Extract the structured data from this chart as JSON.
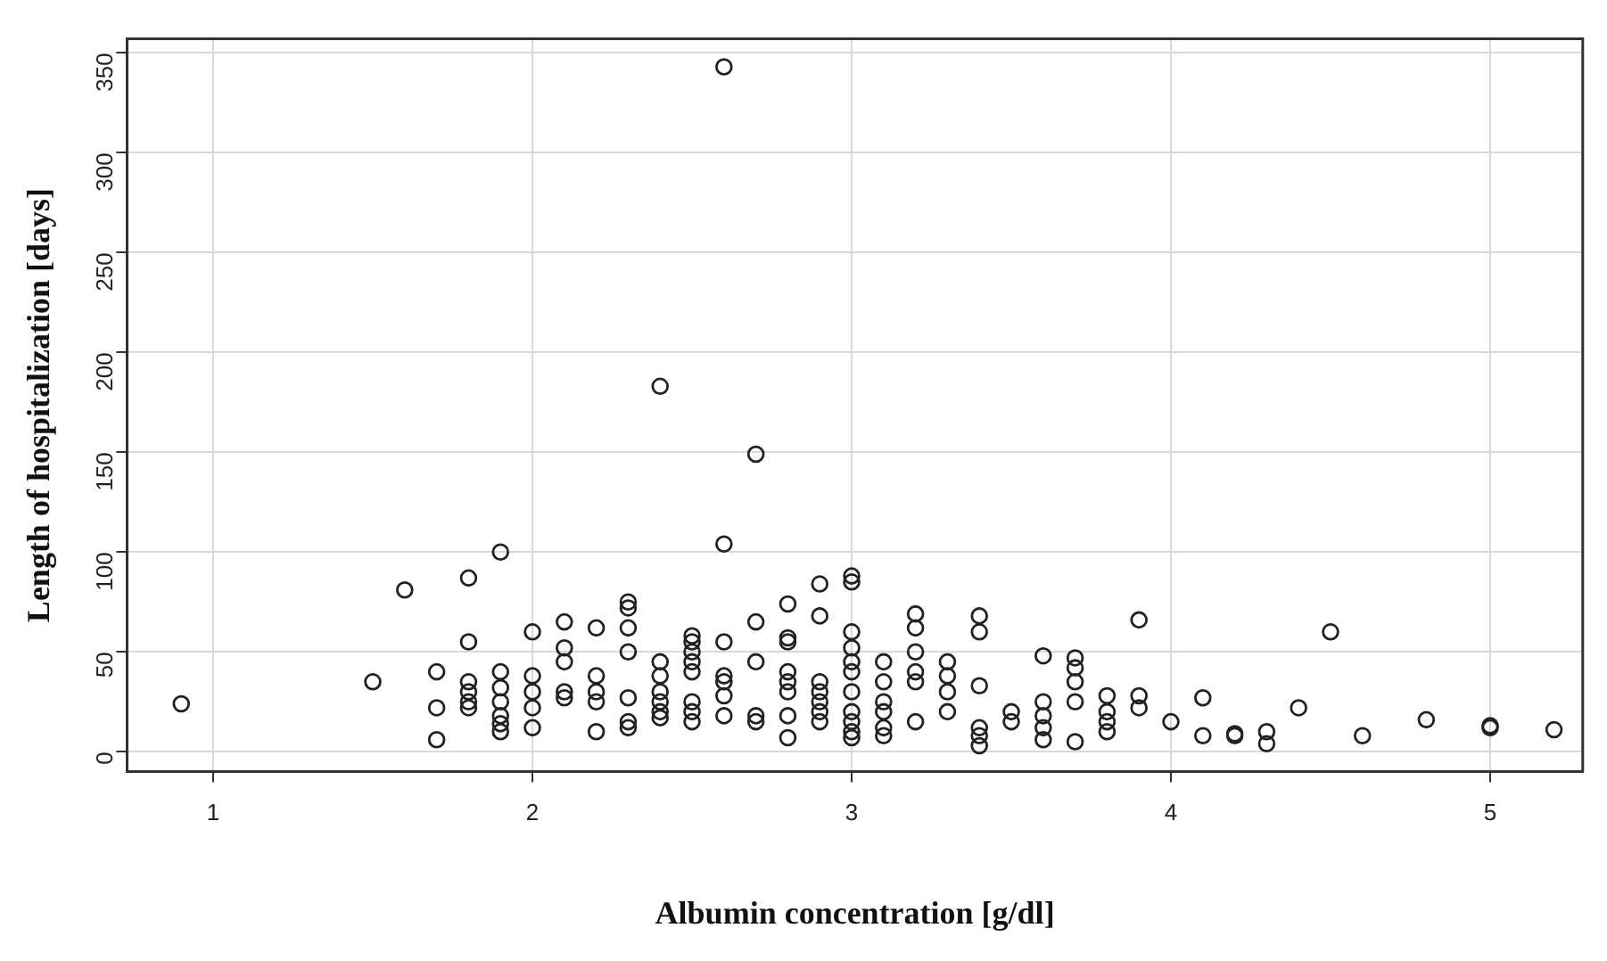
{
  "chart_data": {
    "type": "scatter",
    "xlabel": "Albumin concentration [g/dl]",
    "ylabel": "Length of hospitalization [days]",
    "x": [
      0.9,
      1.5,
      1.6,
      1.7,
      1.7,
      1.7,
      1.8,
      1.8,
      1.8,
      1.8,
      1.8,
      1.8,
      1.9,
      1.9,
      1.9,
      1.9,
      1.9,
      1.9,
      1.9,
      2.0,
      2.0,
      2.0,
      2.0,
      2.0,
      2.1,
      2.1,
      2.1,
      2.1,
      2.1,
      2.2,
      2.2,
      2.2,
      2.2,
      2.2,
      2.3,
      2.3,
      2.3,
      2.3,
      2.3,
      2.3,
      2.3,
      2.4,
      2.4,
      2.4,
      2.4,
      2.4,
      2.4,
      2.4,
      2.5,
      2.5,
      2.5,
      2.5,
      2.5,
      2.5,
      2.5,
      2.5,
      2.6,
      2.6,
      2.6,
      2.6,
      2.6,
      2.6,
      2.6,
      2.7,
      2.7,
      2.7,
      2.7,
      2.7,
      2.8,
      2.8,
      2.8,
      2.8,
      2.8,
      2.8,
      2.8,
      2.8,
      2.9,
      2.9,
      2.9,
      2.9,
      2.9,
      2.9,
      2.9,
      3.0,
      3.0,
      3.0,
      3.0,
      3.0,
      3.0,
      3.0,
      3.0,
      3.0,
      3.0,
      3.0,
      3.1,
      3.1,
      3.1,
      3.1,
      3.1,
      3.1,
      3.2,
      3.2,
      3.2,
      3.2,
      3.2,
      3.2,
      3.3,
      3.3,
      3.3,
      3.3,
      3.4,
      3.4,
      3.4,
      3.4,
      3.4,
      3.4,
      3.5,
      3.5,
      3.6,
      3.6,
      3.6,
      3.6,
      3.6,
      3.7,
      3.7,
      3.7,
      3.7,
      3.7,
      3.8,
      3.8,
      3.8,
      3.8,
      3.9,
      3.9,
      3.9,
      4.0,
      4.1,
      4.1,
      4.2,
      4.2,
      4.3,
      4.3,
      4.4,
      4.5,
      4.6,
      4.8,
      5.0,
      5.0,
      5.2
    ],
    "series": [
      {
        "color": "#222222",
        "values": [
          24,
          35,
          81,
          40,
          22,
          6,
          87,
          55,
          35,
          30,
          25,
          22,
          100,
          40,
          32,
          25,
          18,
          14,
          10,
          60,
          38,
          30,
          22,
          12,
          65,
          52,
          45,
          30,
          27,
          62,
          38,
          30,
          25,
          10,
          75,
          72,
          62,
          50,
          27,
          15,
          12,
          183,
          45,
          38,
          30,
          25,
          20,
          17,
          58,
          55,
          50,
          45,
          40,
          25,
          20,
          15,
          343,
          104,
          55,
          38,
          35,
          28,
          18,
          149,
          65,
          45,
          18,
          15,
          74,
          57,
          55,
          40,
          35,
          30,
          18,
          7,
          84,
          68,
          35,
          30,
          25,
          20,
          15,
          88,
          85,
          60,
          52,
          45,
          40,
          30,
          20,
          15,
          10,
          7,
          45,
          35,
          25,
          20,
          12,
          8,
          69,
          62,
          50,
          40,
          35,
          15,
          45,
          38,
          30,
          20,
          68,
          60,
          33,
          12,
          8,
          3,
          20,
          15,
          48,
          25,
          18,
          12,
          6,
          47,
          42,
          35,
          25,
          5,
          28,
          20,
          15,
          10,
          66,
          28,
          22,
          15,
          27,
          8,
          9,
          8,
          10,
          4,
          22,
          60,
          8,
          16,
          13,
          12,
          11
        ]
      }
    ],
    "xlim": [
      0.73,
      5.29
    ],
    "ylim": [
      -10,
      357
    ],
    "xticks": [
      1,
      2,
      3,
      4,
      5
    ],
    "yticks": [
      0,
      50,
      100,
      150,
      200,
      250,
      300,
      350
    ],
    "grid": true,
    "marker": "circle"
  }
}
